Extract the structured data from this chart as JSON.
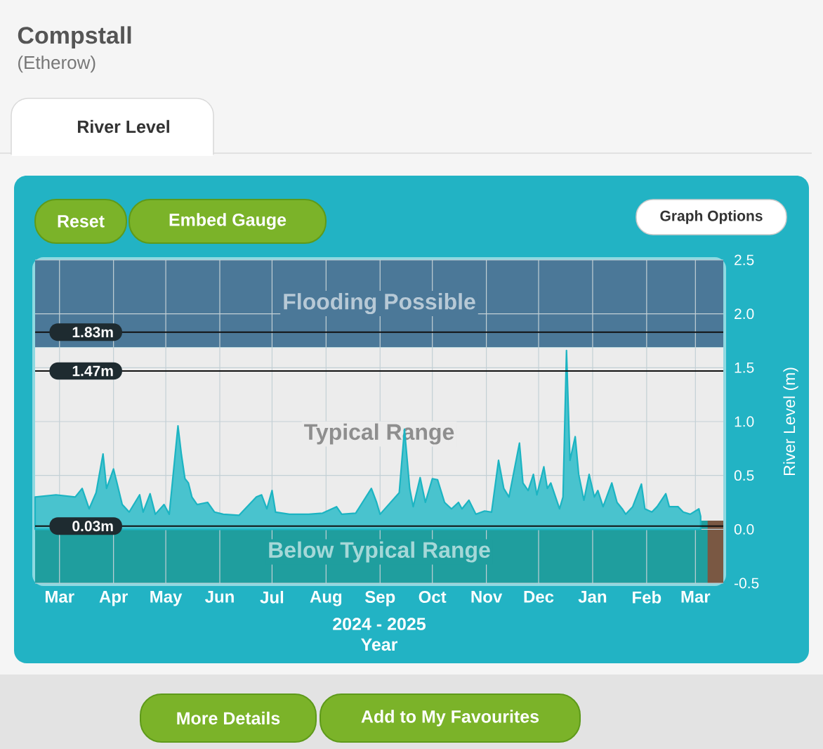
{
  "chart_data": {
    "type": "area",
    "title": "Compstall",
    "subtitle": "(Etherow)",
    "xlabel": "Year",
    "ylabel": "River Level (m)",
    "annotations": [
      "River Level",
      "Reset",
      "Embed Gauge",
      "Graph Options",
      "2024 - 2025",
      "More Details",
      "Add to My Favourites"
    ],
    "x": [
      "2024-03-01",
      "2024-03-13",
      "2024-03-24",
      "2024-03-28",
      "2024-04-01",
      "2024-04-05",
      "2024-04-09",
      "2024-04-11",
      "2024-04-15",
      "2024-04-17",
      "2024-04-20",
      "2024-04-24",
      "2024-04-30",
      "2024-05-02",
      "2024-05-06",
      "2024-05-09",
      "2024-05-14",
      "2024-05-17",
      "2024-05-22",
      "2024-05-24",
      "2024-05-26",
      "2024-05-28",
      "2024-05-30",
      "2024-06-02",
      "2024-06-08",
      "2024-06-12",
      "2024-06-17",
      "2024-06-26",
      "2024-07-06",
      "2024-07-09",
      "2024-07-12",
      "2024-07-15",
      "2024-07-17",
      "2024-07-25",
      "2024-08-05",
      "2024-08-13",
      "2024-08-21",
      "2024-08-24",
      "2024-09-01",
      "2024-09-10",
      "2024-09-13",
      "2024-09-15",
      "2024-09-26",
      "2024-09-29",
      "2024-10-02",
      "2024-10-04",
      "2024-10-08",
      "2024-10-11",
      "2024-10-15",
      "2024-10-18",
      "2024-10-22",
      "2024-10-26",
      "2024-10-30",
      "2024-11-01",
      "2024-11-05",
      "2024-11-09",
      "2024-11-14",
      "2024-11-18",
      "2024-11-22",
      "2024-11-25",
      "2024-11-28",
      "2024-12-04",
      "2024-12-06",
      "2024-12-09",
      "2024-12-12",
      "2024-12-14",
      "2024-12-18",
      "2024-12-20",
      "2024-12-22",
      "2024-12-27",
      "2024-12-29",
      "2024-12-31",
      "2025-01-02",
      "2025-01-05",
      "2025-01-07",
      "2025-01-10",
      "2025-01-13",
      "2025-01-16",
      "2025-01-18",
      "2025-01-21",
      "2025-01-26",
      "2025-01-29",
      "2025-02-01",
      "2025-02-03",
      "2025-02-07",
      "2025-02-12",
      "2025-02-14",
      "2025-02-18",
      "2025-02-21",
      "2025-02-26",
      "2025-02-28",
      "2025-03-05",
      "2025-03-08",
      "2025-03-12",
      "2025-03-17",
      "2025-03-18"
    ],
    "series": [
      {
        "color": "#1CB4C2",
        "values": [
          0.3,
          0.32,
          0.3,
          0.38,
          0.19,
          0.34,
          0.7,
          0.38,
          0.56,
          0.43,
          0.23,
          0.16,
          0.32,
          0.16,
          0.33,
          0.14,
          0.23,
          0.14,
          0.96,
          0.69,
          0.47,
          0.43,
          0.3,
          0.23,
          0.25,
          0.16,
          0.14,
          0.13,
          0.3,
          0.32,
          0.19,
          0.36,
          0.16,
          0.14,
          0.14,
          0.15,
          0.21,
          0.14,
          0.15,
          0.38,
          0.25,
          0.14,
          0.34,
          0.93,
          0.38,
          0.21,
          0.48,
          0.25,
          0.47,
          0.46,
          0.25,
          0.19,
          0.25,
          0.19,
          0.27,
          0.14,
          0.17,
          0.16,
          0.64,
          0.38,
          0.3,
          0.8,
          0.43,
          0.36,
          0.51,
          0.32,
          0.58,
          0.38,
          0.43,
          0.19,
          0.3,
          1.66,
          0.64,
          0.86,
          0.51,
          0.27,
          0.51,
          0.3,
          0.36,
          0.21,
          0.43,
          0.25,
          0.19,
          0.14,
          0.21,
          0.42,
          0.19,
          0.16,
          0.21,
          0.33,
          0.21,
          0.21,
          0.16,
          0.14,
          0.19,
          0.12
        ]
      }
    ],
    "xlim": [
      "2024-03-01",
      "2025-03-31"
    ],
    "xticks": [
      {
        "value": "2024-03-15",
        "label": "Mar"
      },
      {
        "value": "2024-04-15",
        "label": "Apr"
      },
      {
        "value": "2024-05-15",
        "label": "May"
      },
      {
        "value": "2024-06-15",
        "label": "Jun"
      },
      {
        "value": "2024-07-15",
        "label": "Jul"
      },
      {
        "value": "2024-08-15",
        "label": "Aug"
      },
      {
        "value": "2024-09-15",
        "label": "Sep"
      },
      {
        "value": "2024-10-15",
        "label": "Oct"
      },
      {
        "value": "2024-11-15",
        "label": "Nov"
      },
      {
        "value": "2024-12-15",
        "label": "Dec"
      },
      {
        "value": "2025-01-15",
        "label": "Jan"
      },
      {
        "value": "2025-02-15",
        "label": "Feb"
      },
      {
        "value": "2025-03-15",
        "label": "Mar"
      }
    ],
    "ylim": [
      -0.5,
      2.5
    ],
    "yticks": [
      -0.5,
      {
        "value": 0,
        "label": "0.0"
      },
      0.5,
      {
        "value": 1,
        "label": "1.0"
      },
      1.5,
      {
        "value": 2,
        "label": "2.0"
      },
      2.5
    ],
    "grid": true,
    "ref_lines": [
      {
        "axis": "y",
        "value": 1.83,
        "label": "1.83m",
        "color": "#111111"
      },
      {
        "axis": "y",
        "value": 1.47,
        "label": "1.47m",
        "color": "#111111"
      },
      {
        "axis": "y",
        "value": 0.03,
        "label": "0.03m",
        "color": "#111111"
      }
    ],
    "bands": [
      {
        "axis": "y",
        "from": 1.69,
        "to": 2.5,
        "label": "Flooding Possible",
        "color": "#4B7898"
      },
      {
        "axis": "y",
        "from": 0.08,
        "to": 1.69,
        "label": "Typical Range",
        "color": "#ECECEC"
      },
      {
        "axis": "y",
        "from": -0.5,
        "to": 0.08,
        "label": "Below Typical Range",
        "color": "#1F9E9E"
      },
      {
        "axis": "x",
        "from": "2025-03-22",
        "to": "2025-03-31",
        "color": "#7A5843"
      }
    ]
  }
}
